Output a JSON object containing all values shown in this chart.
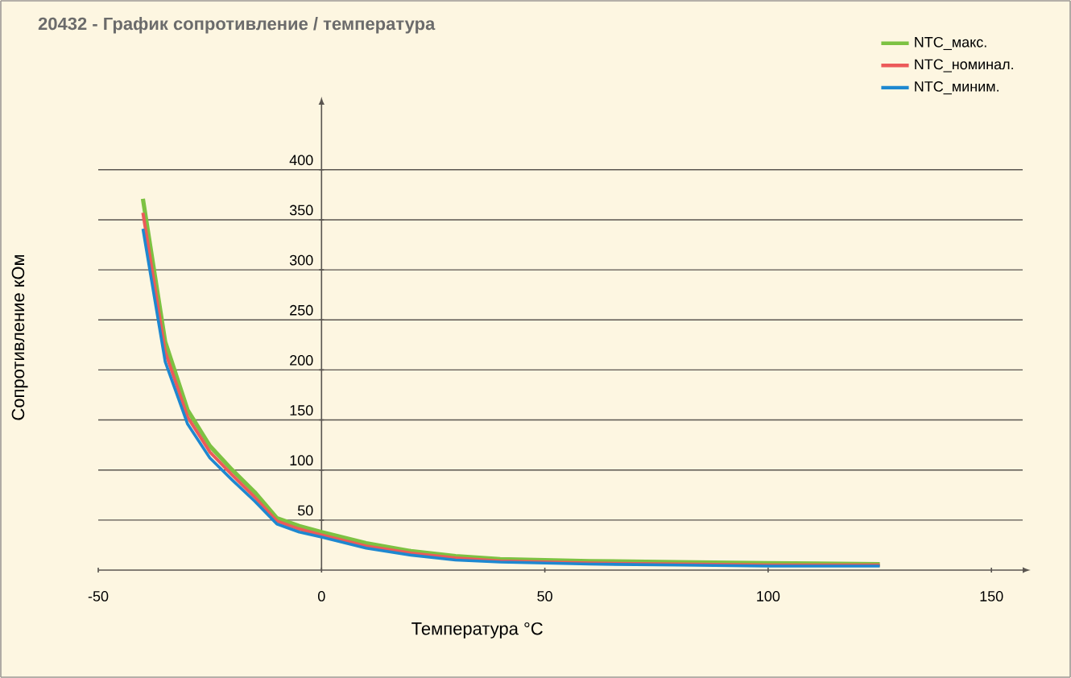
{
  "chart_data": {
    "type": "line",
    "title": "20432 - График сопротивление / температура",
    "xlabel": "Температура °C",
    "ylabel": "Сопротивление кОм",
    "x": [
      -40,
      -35,
      -30,
      -25,
      -20,
      -15,
      -10,
      -5,
      0,
      10,
      20,
      30,
      40,
      50,
      60,
      80,
      100,
      125
    ],
    "series": [
      {
        "name": "NTC_макс.",
        "color": "#7dc242",
        "values": [
          371,
          228,
          160,
          124,
          100,
          78,
          52,
          44,
          38,
          27,
          19,
          14,
          11,
          10,
          9,
          8,
          7,
          6
        ]
      },
      {
        "name": "NTC_номинал.",
        "color": "#ec5a5a",
        "values": [
          357,
          218,
          153,
          118,
          95,
          73,
          49,
          41,
          35,
          24,
          17,
          12,
          9,
          8,
          7,
          6,
          5,
          5
        ]
      },
      {
        "name": "NTC_миним.",
        "color": "#1e88d0",
        "values": [
          341,
          208,
          146,
          112,
          90,
          69,
          46,
          38,
          33,
          22,
          15,
          10,
          8,
          7,
          6,
          5,
          4,
          4
        ]
      }
    ],
    "xlim": [
      -50,
      157
    ],
    "ylim": [
      0,
      465
    ],
    "xticks": [
      -50,
      0,
      50,
      100,
      150
    ],
    "yticks": [
      50,
      100,
      150,
      200,
      250,
      300,
      350,
      400
    ],
    "grid": "y",
    "legend": "top right",
    "marker": "none",
    "line_style": "solid"
  }
}
